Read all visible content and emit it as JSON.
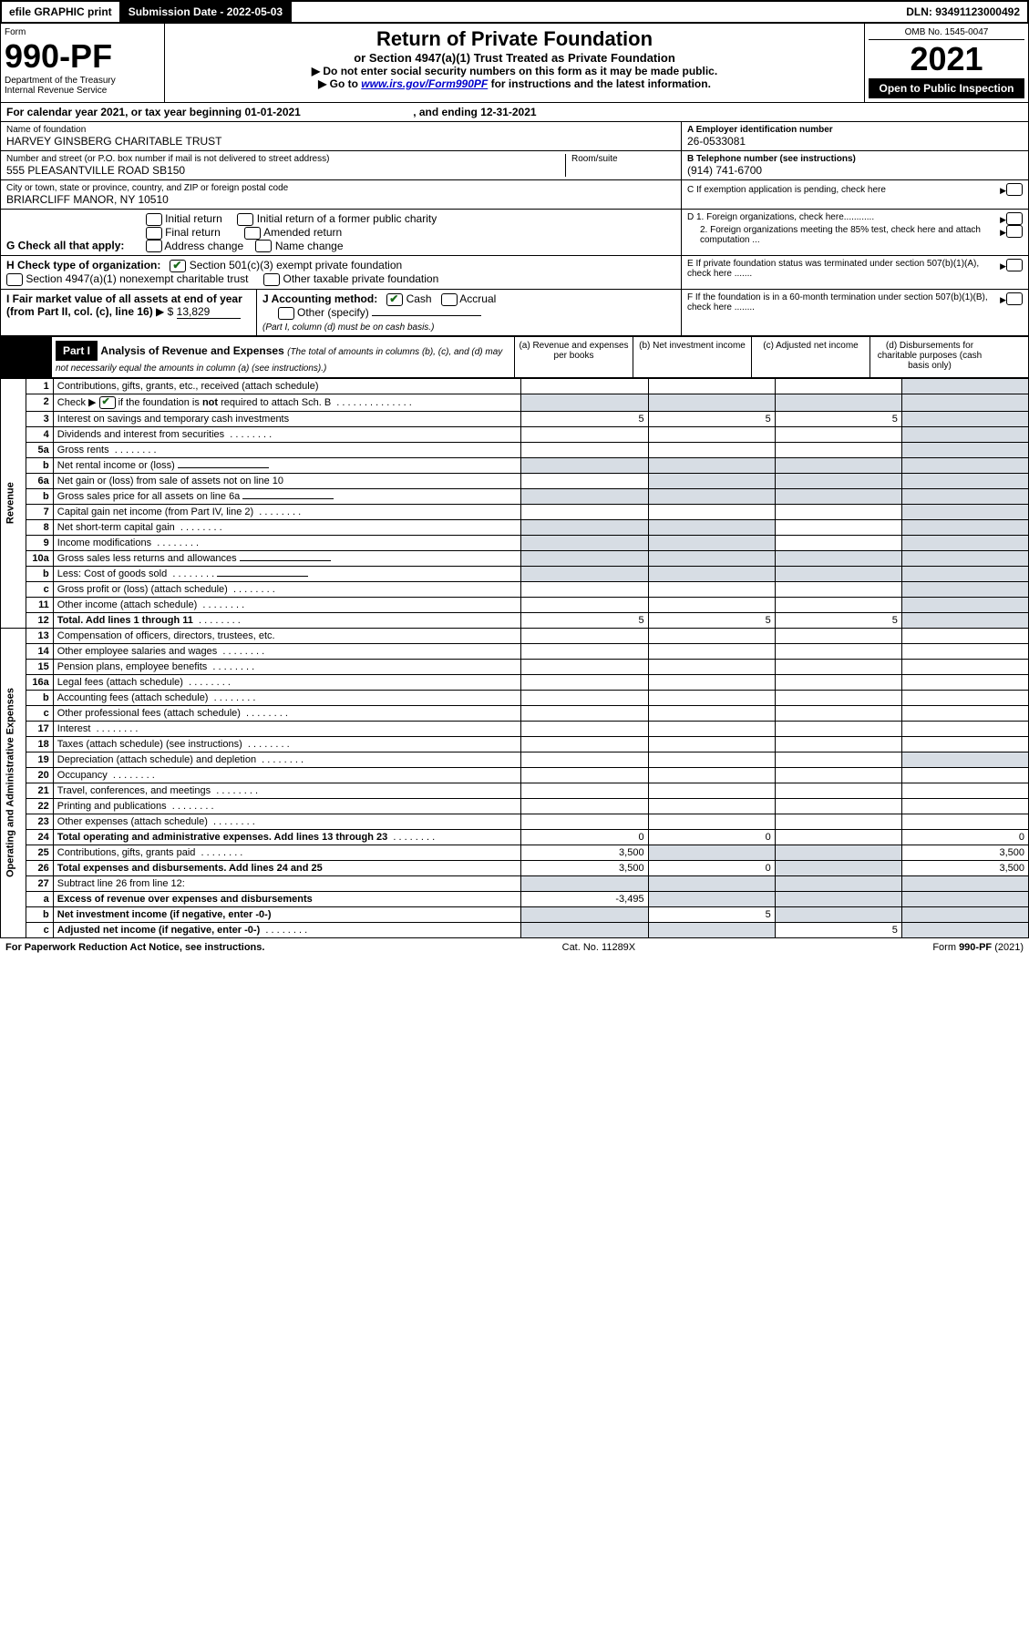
{
  "topbar": {
    "efile": "efile GRAPHIC print",
    "submission_label": "Submission Date - 2022-05-03",
    "dln_label": "DLN: 93491123000492"
  },
  "header": {
    "form_label": "Form",
    "form_number": "990-PF",
    "dept": "Department of the Treasury",
    "irs": "Internal Revenue Service",
    "title": "Return of Private Foundation",
    "subtitle": "or Section 4947(a)(1) Trust Treated as Private Foundation",
    "instr1": "▶ Do not enter social security numbers on this form as it may be made public.",
    "instr2_pre": "▶ Go to ",
    "instr2_link": "www.irs.gov/Form990PF",
    "instr2_post": " for instructions and the latest information.",
    "omb": "OMB No. 1545-0047",
    "year": "2021",
    "open": "Open to Public Inspection"
  },
  "period": {
    "label_pre": "For calendar year 2021, or tax year beginning ",
    "begin": "01-01-2021",
    "mid": " , and ending ",
    "end": "12-31-2021"
  },
  "entity": {
    "name_label": "Name of foundation",
    "name": "HARVEY GINSBERG CHARITABLE TRUST",
    "addr_label": "Number and street (or P.O. box number if mail is not delivered to street address)",
    "addr": "555 PLEASANTVILLE ROAD SB150",
    "room_label": "Room/suite",
    "city_label": "City or town, state or province, country, and ZIP or foreign postal code",
    "city": "BRIARCLIFF MANOR, NY  10510",
    "a_label": "A Employer identification number",
    "ein": "26-0533081",
    "b_label": "B Telephone number (see instructions)",
    "phone": "(914) 741-6700",
    "c_label": "C If exemption application is pending, check here"
  },
  "g": {
    "label": "G Check all that apply:",
    "opts": [
      "Initial return",
      "Initial return of a former public charity",
      "Final return",
      "Amended return",
      "Address change",
      "Name change"
    ]
  },
  "h": {
    "label": "H Check type of organization:",
    "opt1": "Section 501(c)(3) exempt private foundation",
    "opt2": "Section 4947(a)(1) nonexempt charitable trust",
    "opt3": "Other taxable private foundation"
  },
  "i": {
    "label": "I Fair market value of all assets at end of year (from Part II, col. (c), line 16) ",
    "tri": "▶ $",
    "value": "13,829"
  },
  "j": {
    "label": "J Accounting method:",
    "cash": "Cash",
    "accrual": "Accrual",
    "other": "Other (specify)",
    "note": "(Part I, column (d) must be on cash basis.)"
  },
  "d": {
    "d1": "D 1. Foreign organizations, check here............",
    "d2": "2. Foreign organizations meeting the 85% test, check here and attach computation ..."
  },
  "e": {
    "label": "E  If private foundation status was terminated under section 507(b)(1)(A), check here ......."
  },
  "f": {
    "label": "F  If the foundation is in a 60-month termination under section 507(b)(1)(B), check here ........"
  },
  "part1": {
    "tag": "Part I",
    "title": "Analysis of Revenue and Expenses ",
    "note": "(The total of amounts in columns (b), (c), and (d) may not necessarily equal the amounts in column (a) (see instructions).)",
    "col_a": "(a)   Revenue and expenses per books",
    "col_b": "(b)   Net investment income",
    "col_c": "(c)  Adjusted net income",
    "col_d": "(d)  Disbursements for charitable purposes (cash basis only)"
  },
  "side_labels": {
    "revenue": "Revenue",
    "expenses": "Operating and Administrative Expenses"
  },
  "rows": [
    {
      "n": "1",
      "d": "Contributions, gifts, grants, etc., received (attach schedule)"
    },
    {
      "n": "2",
      "d": "Check ▶ ✔ if the foundation is not required to attach Sch. B",
      "dots": true,
      "check": true
    },
    {
      "n": "3",
      "d": "Interest on savings and temporary cash investments",
      "a": "5",
      "b": "5",
      "c": "5"
    },
    {
      "n": "4",
      "d": "Dividends and interest from securities",
      "dots": true
    },
    {
      "n": "5a",
      "d": "Gross rents",
      "dots": true
    },
    {
      "n": "b",
      "d": "Net rental income or (loss)",
      "inline": true
    },
    {
      "n": "6a",
      "d": "Net gain or (loss) from sale of assets not on line 10"
    },
    {
      "n": "b",
      "d": "Gross sales price for all assets on line 6a",
      "inline": true
    },
    {
      "n": "7",
      "d": "Capital gain net income (from Part IV, line 2)",
      "dots": true
    },
    {
      "n": "8",
      "d": "Net short-term capital gain",
      "dots": true
    },
    {
      "n": "9",
      "d": "Income modifications",
      "dots": true
    },
    {
      "n": "10a",
      "d": "Gross sales less returns and allowances",
      "inline": true
    },
    {
      "n": "b",
      "d": "Less: Cost of goods sold",
      "dots": true,
      "inline": true
    },
    {
      "n": "c",
      "d": "Gross profit or (loss) (attach schedule)",
      "dots": true
    },
    {
      "n": "11",
      "d": "Other income (attach schedule)",
      "dots": true
    },
    {
      "n": "12",
      "d": "Total. Add lines 1 through 11",
      "dots": true,
      "bold": true,
      "a": "5",
      "b": "5",
      "c": "5"
    },
    {
      "n": "13",
      "d": "Compensation of officers, directors, trustees, etc."
    },
    {
      "n": "14",
      "d": "Other employee salaries and wages",
      "dots": true
    },
    {
      "n": "15",
      "d": "Pension plans, employee benefits",
      "dots": true
    },
    {
      "n": "16a",
      "d": "Legal fees (attach schedule)",
      "dots": true
    },
    {
      "n": "b",
      "d": "Accounting fees (attach schedule)",
      "dots": true
    },
    {
      "n": "c",
      "d": "Other professional fees (attach schedule)",
      "dots": true
    },
    {
      "n": "17",
      "d": "Interest",
      "dots": true
    },
    {
      "n": "18",
      "d": "Taxes (attach schedule) (see instructions)",
      "dots": true
    },
    {
      "n": "19",
      "d": "Depreciation (attach schedule) and depletion",
      "dots": true
    },
    {
      "n": "20",
      "d": "Occupancy",
      "dots": true
    },
    {
      "n": "21",
      "d": "Travel, conferences, and meetings",
      "dots": true
    },
    {
      "n": "22",
      "d": "Printing and publications",
      "dots": true
    },
    {
      "n": "23",
      "d": "Other expenses (attach schedule)",
      "dots": true
    },
    {
      "n": "24",
      "d": "Total operating and administrative expenses. Add lines 13 through 23",
      "dots": true,
      "bold": true,
      "a": "0",
      "b": "0",
      "d_": "0"
    },
    {
      "n": "25",
      "d": "Contributions, gifts, grants paid",
      "dots": true,
      "a": "3,500",
      "d_": "3,500"
    },
    {
      "n": "26",
      "d": "Total expenses and disbursements. Add lines 24 and 25",
      "bold": true,
      "a": "3,500",
      "b": "0",
      "d_": "3,500"
    },
    {
      "n": "27",
      "d": "Subtract line 26 from line 12:"
    },
    {
      "n": "a",
      "d": "Excess of revenue over expenses and disbursements",
      "bold": true,
      "a": "-3,495"
    },
    {
      "n": "b",
      "d": "Net investment income (if negative, enter -0-)",
      "bold": true,
      "b": "5"
    },
    {
      "n": "c",
      "d": "Adjusted net income (if negative, enter -0-)",
      "dots": true,
      "bold": true,
      "c": "5"
    }
  ],
  "shaded": {
    "col_d_rows": [
      "1",
      "2",
      "3",
      "4",
      "5a",
      "b",
      "6a",
      "7",
      "8",
      "9",
      "c",
      "10c",
      "11",
      "12"
    ],
    "misc": true
  },
  "footer": {
    "left": "For Paperwork Reduction Act Notice, see instructions.",
    "mid": "Cat. No. 11289X",
    "right": "Form 990-PF (2021)"
  }
}
